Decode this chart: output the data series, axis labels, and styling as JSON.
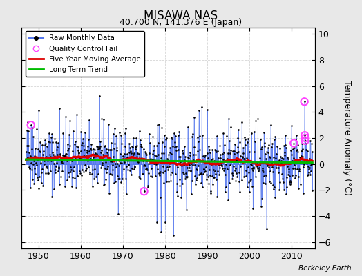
{
  "title": "MISAWA NAS",
  "subtitle": "40.700 N, 141.376 E (Japan)",
  "ylabel": "Temperature Anomaly (°C)",
  "attribution": "Berkeley Earth",
  "xlim": [
    1946,
    2015.5
  ],
  "ylim": [
    -6.5,
    10.5
  ],
  "yticks": [
    -6,
    -4,
    -2,
    0,
    2,
    4,
    6,
    8,
    10
  ],
  "xticks": [
    1950,
    1960,
    1970,
    1980,
    1990,
    2000,
    2010
  ],
  "bg_color": "#e8e8e8",
  "plot_bg_color": "#ffffff",
  "grid_color": "#cccccc",
  "raw_line_color": "#5577ee",
  "raw_dot_color": "#000000",
  "moving_avg_color": "#dd0000",
  "trend_color": "#00bb00",
  "qc_fail_color": "#ff44ff",
  "start_year": 1947,
  "end_year": 2014,
  "seed": 42
}
